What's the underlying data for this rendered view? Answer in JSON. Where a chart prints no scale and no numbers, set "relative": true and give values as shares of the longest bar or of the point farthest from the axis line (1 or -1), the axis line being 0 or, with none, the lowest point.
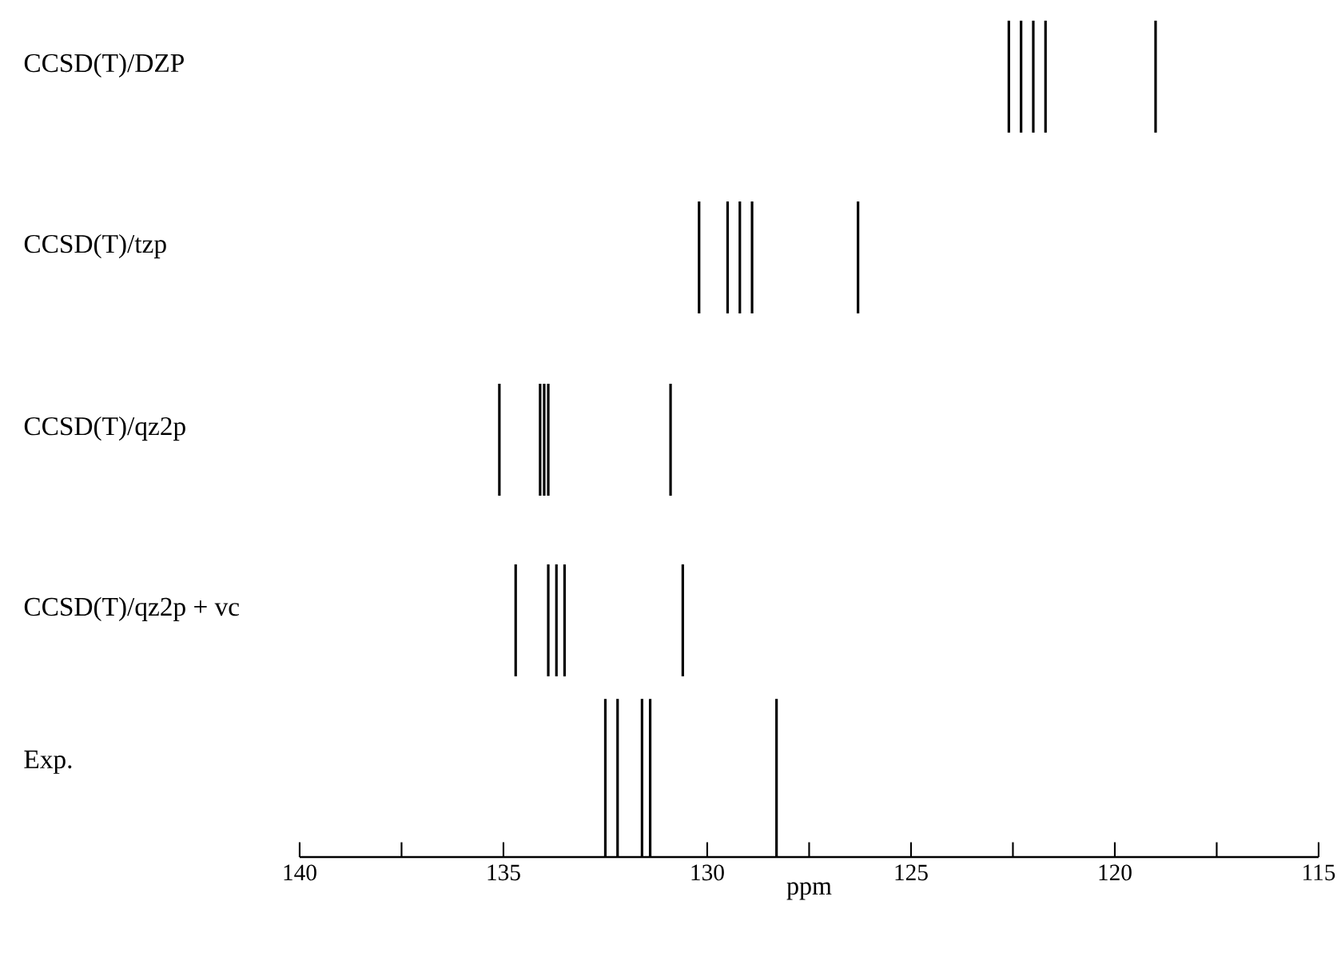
{
  "chart_data": [
    {
      "type": "bar",
      "ylabel": "CCSD(T)/DZP",
      "x": [
        122.6,
        122.3,
        122.0,
        121.7,
        119.0
      ],
      "values": [
        1,
        1,
        1,
        1,
        1
      ],
      "relative": true,
      "color": "#000000",
      "xlim": [
        140,
        115
      ],
      "tick_labels": false
    },
    {
      "type": "bar",
      "ylabel": "CCSD(T)/tzp",
      "x": [
        130.2,
        129.5,
        129.2,
        128.9,
        126.3
      ],
      "values": [
        1,
        1,
        1,
        1,
        1
      ],
      "relative": true,
      "color": "#000000",
      "xlim": [
        140,
        115
      ],
      "tick_labels": false
    },
    {
      "type": "bar",
      "ylabel": "CCSD(T)/qz2p",
      "x": [
        135.1,
        134.1,
        134.0,
        133.9,
        130.9
      ],
      "values": [
        1,
        1,
        1,
        1,
        1
      ],
      "relative": true,
      "color": "#000000",
      "xlim": [
        140,
        115
      ],
      "tick_labels": false
    },
    {
      "type": "bar",
      "ylabel": "CCSD(T)/qz2p + vc",
      "x": [
        134.7,
        133.9,
        133.7,
        133.5,
        130.6
      ],
      "values": [
        1,
        1,
        1,
        1,
        1
      ],
      "relative": true,
      "color": "#000000",
      "xlim": [
        140,
        115
      ],
      "tick_labels": false
    },
    {
      "type": "bar",
      "ylabel": "Exp.",
      "xlabel": "ppm",
      "x": [
        132.5,
        132.2,
        131.6,
        131.4,
        128.3
      ],
      "values": [
        1,
        1,
        1,
        1,
        1
      ],
      "relative": true,
      "color": "#000000",
      "xlim": [
        140,
        115
      ],
      "tick_labels": "x",
      "xticks": [
        140,
        {
          "value": 137.5,
          "label": null
        },
        135,
        {
          "value": 132.5,
          "label": null
        },
        130,
        {
          "value": 127.5,
          "label": null
        },
        125,
        {
          "value": 122.5,
          "label": null
        },
        120,
        {
          "value": 117.5,
          "label": null
        },
        115
      ]
    }
  ]
}
